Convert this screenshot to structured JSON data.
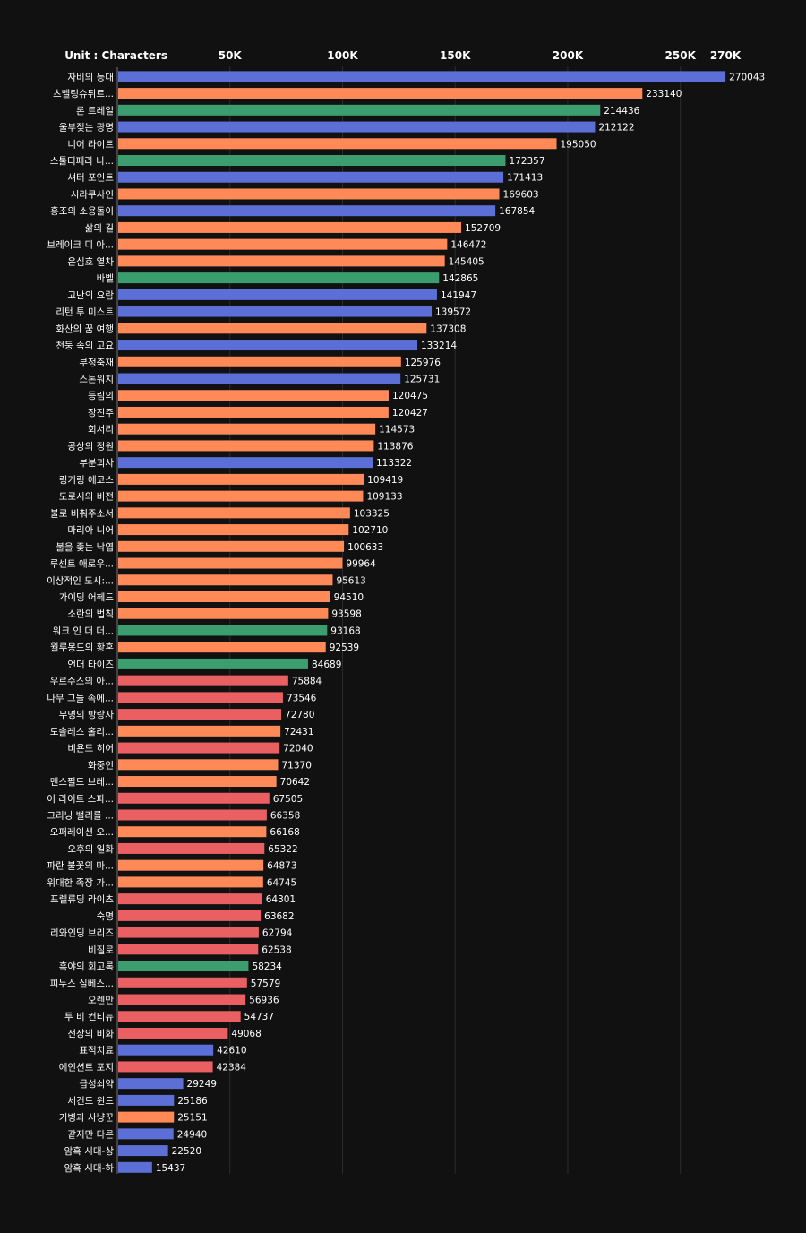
{
  "chart_data": {
    "type": "bar",
    "orientation": "horizontal",
    "unit_label": "Unit : Characters",
    "x_ticks": [
      {
        "value": 50000,
        "label": "50K"
      },
      {
        "value": 100000,
        "label": "100K"
      },
      {
        "value": 150000,
        "label": "150K"
      },
      {
        "value": 200000,
        "label": "200K"
      },
      {
        "value": 250000,
        "label": "250K"
      },
      {
        "value": 270000,
        "label": "270K"
      }
    ],
    "xlim": [
      0,
      270000
    ],
    "grid": true,
    "colors": {
      "blue": "#5b6fd6",
      "orange": "#ff8a57",
      "green": "#3c9e6e",
      "red": "#ea5f61"
    },
    "categories": [
      "자비의 등대",
      "츠벨링슈튀르...",
      "론 트레일",
      "울부짖는 광명",
      "니어 라이트",
      "스툴티페라 나...",
      "섀터 포인트",
      "시라쿠사인",
      "흥조의 소용돌이",
      "삶의 길",
      "브레이크 디 아...",
      "은심호 열차",
      "바벨",
      "고난의 요람",
      "리턴 투 미스트",
      "화산의 꿈 여행",
      "천둥 속의 고요",
      "부정축재",
      "스톤워치",
      "등림의",
      "장진주",
      "회서리",
      "공상의 정원",
      "부분괴사",
      "링거링 에코스",
      "도로시의 비전",
      "불로 비춰주소서",
      "마리아 니어",
      "불을 좇는 낙엽",
      "루센트 애로우...",
      "이상적인 도시:...",
      "가이딩 어헤드",
      "소란의 법칙",
      "워크 인 더 더...",
      "월루몽드의 황혼",
      "언더 타이즈",
      "우르수스의 아...",
      "나무 그늘 속에...",
      "무명의 방랑자",
      "도솔레스 홀리...",
      "비욘드 히어",
      "화중인",
      "맨스필드 브레...",
      "어 라이트 스파...",
      "그리닝 밸리를 ...",
      "오퍼레이션 오...",
      "오후의 일화",
      "파란 불꽃의 마...",
      "위대한 족장 가...",
      "프렐류딩 라이츠",
      "숙명",
      "리와인딩 브리즈",
      "비질로",
      "흑야의 회고록",
      "피누스 실베스...",
      "오렌만",
      "투 비 컨티뉴",
      "전장의 비화",
      "표적치료",
      "에인션트 포지",
      "급성쇠약",
      "세컨드 윈드",
      "기병과 사냥꾼",
      "같지만 다른",
      "암흑 시대-상",
      "암흑 시대-하"
    ],
    "values": [
      270043,
      233140,
      214436,
      212122,
      195050,
      172357,
      171413,
      169603,
      167854,
      152709,
      146472,
      145405,
      142865,
      141947,
      139572,
      137308,
      133214,
      125976,
      125731,
      120475,
      120427,
      114573,
      113876,
      113322,
      109419,
      109133,
      103325,
      102710,
      100633,
      99964,
      95613,
      94510,
      93598,
      93168,
      92539,
      84689,
      75884,
      73546,
      72780,
      72431,
      72040,
      71370,
      70642,
      67505,
      66358,
      66168,
      65322,
      64873,
      64745,
      64301,
      63682,
      62794,
      62538,
      58234,
      57579,
      56936,
      54737,
      49068,
      42610,
      42384,
      29249,
      25186,
      25151,
      24940,
      22520,
      15437
    ],
    "bar_colors": [
      "blue",
      "orange",
      "green",
      "blue",
      "orange",
      "green",
      "blue",
      "orange",
      "blue",
      "orange",
      "orange",
      "orange",
      "green",
      "blue",
      "blue",
      "orange",
      "blue",
      "orange",
      "blue",
      "orange",
      "orange",
      "orange",
      "orange",
      "blue",
      "orange",
      "orange",
      "orange",
      "orange",
      "orange",
      "orange",
      "orange",
      "orange",
      "orange",
      "green",
      "orange",
      "green",
      "red",
      "red",
      "red",
      "orange",
      "red",
      "orange",
      "orange",
      "red",
      "red",
      "orange",
      "red",
      "orange",
      "orange",
      "red",
      "red",
      "red",
      "red",
      "green",
      "red",
      "red",
      "red",
      "red",
      "blue",
      "red",
      "blue",
      "blue",
      "orange",
      "blue",
      "blue",
      "blue"
    ]
  }
}
